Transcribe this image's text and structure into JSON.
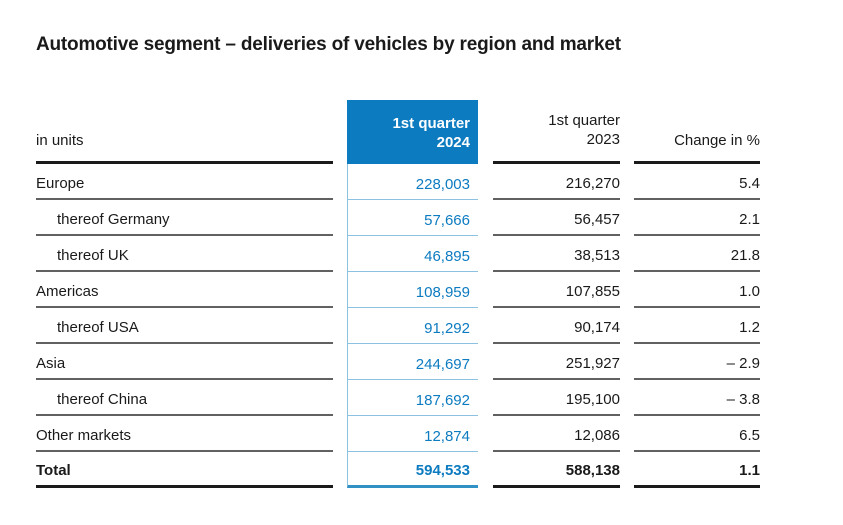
{
  "title": "Automotive segment – deliveries of vehicles by region and market",
  "colors": {
    "accent_blue": "#0c7bc0",
    "light_blue_line": "#8cc1e0",
    "total_blue_line": "#3191c5",
    "gray_line": "#616161",
    "black_line": "#1a1a1a",
    "text": "#1a1a1a"
  },
  "table": {
    "unit_label": "in units",
    "headers": {
      "q1_2024_line1": "1st quarter",
      "q1_2024_line2": "2024",
      "q1_2023_line1": "1st quarter",
      "q1_2023_line2": "2023",
      "change": "Change in %"
    },
    "rows": [
      {
        "label": "Europe",
        "q1_2024": "228,003",
        "q1_2023": "216,270",
        "change": "5.4"
      },
      {
        "label": "thereof Germany",
        "q1_2024": "57,666",
        "q1_2023": "56,457",
        "change": "2.1"
      },
      {
        "label": "thereof UK",
        "q1_2024": "46,895",
        "q1_2023": "38,513",
        "change": "21.8"
      },
      {
        "label": "Americas",
        "q1_2024": "108,959",
        "q1_2023": "107,855",
        "change": "1.0"
      },
      {
        "label": "thereof USA",
        "q1_2024": "91,292",
        "q1_2023": "90,174",
        "change": "1.2"
      },
      {
        "label": "Asia",
        "q1_2024": "244,697",
        "q1_2023": "251,927",
        "change": "– 2.9"
      },
      {
        "label": "thereof China",
        "q1_2024": "187,692",
        "q1_2023": "195,100",
        "change": "– 3.8"
      },
      {
        "label": "Other markets",
        "q1_2024": "12,874",
        "q1_2023": "12,086",
        "change": "6.5"
      },
      {
        "label": "Total",
        "q1_2024": "594,533",
        "q1_2023": "588,138",
        "change": "1.1"
      }
    ]
  },
  "chart_data": {
    "type": "table",
    "title": "Automotive segment – deliveries of vehicles by region and market",
    "unit": "in units",
    "columns": [
      "1st quarter 2024",
      "1st quarter 2023",
      "Change in %"
    ],
    "categories": [
      "Europe",
      "thereof Germany",
      "thereof UK",
      "Americas",
      "thereof USA",
      "Asia",
      "thereof China",
      "Other markets",
      "Total"
    ],
    "series": [
      {
        "name": "1st quarter 2024",
        "values": [
          228003,
          57666,
          46895,
          108959,
          91292,
          244697,
          187692,
          12874,
          594533
        ]
      },
      {
        "name": "1st quarter 2023",
        "values": [
          216270,
          56457,
          38513,
          107855,
          90174,
          251927,
          195100,
          12086,
          588138
        ]
      },
      {
        "name": "Change in %",
        "values": [
          5.4,
          2.1,
          21.8,
          1.0,
          1.2,
          -2.9,
          -3.8,
          6.5,
          1.1
        ]
      }
    ]
  }
}
